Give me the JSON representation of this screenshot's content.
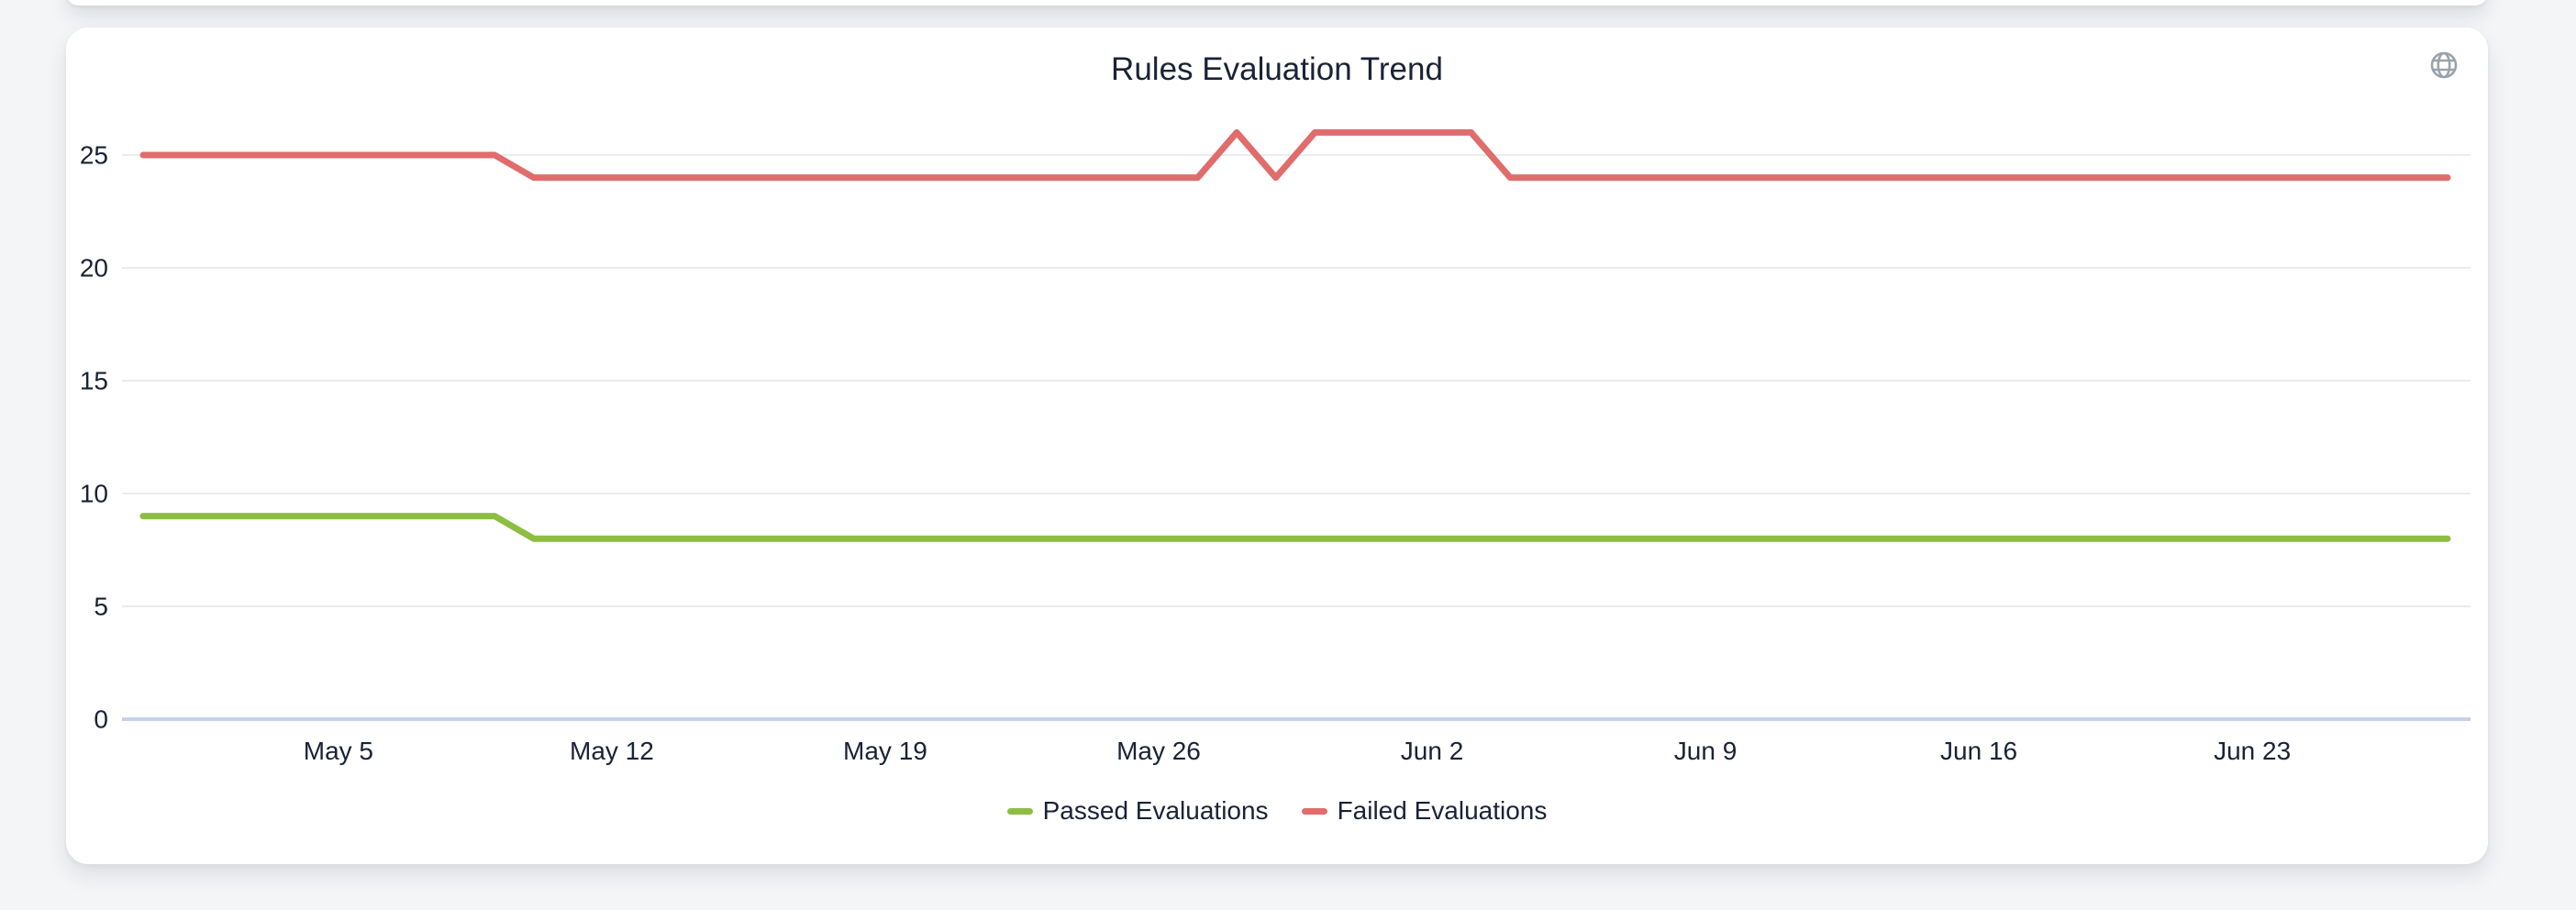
{
  "page": {
    "background_color": "#F4F5F7"
  },
  "card": {
    "title": "Rules Evaluation Trend",
    "action_icon": "globe-icon",
    "action_icon_color": "#9AA2AC",
    "background_color": "#FFFFFF"
  },
  "chart_data": {
    "type": "line",
    "title": "Rules Evaluation Trend",
    "xlabel": "",
    "ylabel": "",
    "grid": true,
    "legend_position": "bottom",
    "ylim": [
      0,
      27
    ],
    "y_ticks": [
      0,
      5,
      10,
      15,
      20,
      25
    ],
    "x_tick_labels": [
      "May 5",
      "May 12",
      "May 19",
      "May 26",
      "Jun 2",
      "Jun 9",
      "Jun 16",
      "Jun 23"
    ],
    "x": [
      "Apr 30",
      "May 1",
      "May 2",
      "May 3",
      "May 4",
      "May 5",
      "May 6",
      "May 7",
      "May 8",
      "May 9",
      "May 10",
      "May 11",
      "May 12",
      "May 13",
      "May 14",
      "May 15",
      "May 16",
      "May 17",
      "May 18",
      "May 19",
      "May 20",
      "May 21",
      "May 22",
      "May 23",
      "May 24",
      "May 25",
      "May 26",
      "May 27",
      "May 28",
      "May 29",
      "May 30",
      "May 31",
      "Jun 1",
      "Jun 2",
      "Jun 3",
      "Jun 4",
      "Jun 5",
      "Jun 6",
      "Jun 7",
      "Jun 8",
      "Jun 9",
      "Jun 10",
      "Jun 11",
      "Jun 12",
      "Jun 13",
      "Jun 14",
      "Jun 15",
      "Jun 16",
      "Jun 17",
      "Jun 18",
      "Jun 19",
      "Jun 20",
      "Jun 21",
      "Jun 22",
      "Jun 23",
      "Jun 24",
      "Jun 25",
      "Jun 26",
      "Jun 27",
      "Jun 28"
    ],
    "series": [
      {
        "name": "Passed Evaluations",
        "color": "#8DBE42",
        "values": [
          9,
          9,
          9,
          9,
          9,
          9,
          9,
          9,
          9,
          9,
          8,
          8,
          8,
          8,
          8,
          8,
          8,
          8,
          8,
          8,
          8,
          8,
          8,
          8,
          8,
          8,
          8,
          8,
          8,
          8,
          8,
          8,
          8,
          8,
          8,
          8,
          8,
          8,
          8,
          8,
          8,
          8,
          8,
          8,
          8,
          8,
          8,
          8,
          8,
          8,
          8,
          8,
          8,
          8,
          8,
          8,
          8,
          8,
          8,
          8
        ]
      },
      {
        "name": "Failed Evaluations",
        "color": "#E06C6C",
        "values": [
          25,
          25,
          25,
          25,
          25,
          25,
          25,
          25,
          25,
          25,
          24,
          24,
          24,
          24,
          24,
          24,
          24,
          24,
          24,
          24,
          24,
          24,
          24,
          24,
          24,
          24,
          24,
          24,
          26,
          24,
          26,
          26,
          26,
          26,
          26,
          24,
          24,
          24,
          24,
          24,
          24,
          24,
          24,
          24,
          24,
          24,
          24,
          24,
          24,
          24,
          24,
          24,
          24,
          24,
          24,
          24,
          24,
          24,
          24,
          24
        ]
      }
    ],
    "colors": {
      "grid_line": "#EBECEE",
      "axis_line": "#C7D2E8",
      "tick_text": "#1A2235"
    }
  }
}
